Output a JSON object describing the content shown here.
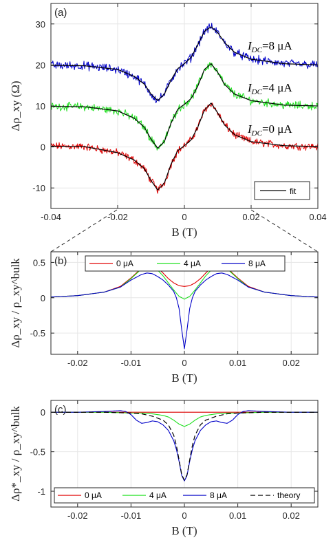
{
  "chart_data": [
    {
      "panel": "(a)",
      "type": "line",
      "xlabel": "B (T)",
      "ylabel": "Δρ_xy (Ω)",
      "xlim": [
        -0.04,
        0.04
      ],
      "ylim": [
        -15,
        35
      ],
      "xticks": [
        -0.04,
        -0.02,
        0,
        0.02,
        0.04
      ],
      "xtick_labels": [
        "-0.04",
        "-0.02",
        "0",
        "0.02",
        "0.04"
      ],
      "yticks": [
        -10,
        0,
        10,
        20,
        30
      ],
      "ytick_labels": [
        "-10",
        "0",
        "10",
        "20",
        "30"
      ],
      "grid": true,
      "legend_position": "bottom-right",
      "legend": [
        "fit"
      ],
      "series": [
        {
          "label": "I_DC=0 μA",
          "color": "#e00000",
          "offset": 0,
          "x": [
            -0.04,
            -0.03,
            -0.02,
            -0.015,
            -0.012,
            -0.01,
            -0.008,
            -0.006,
            -0.004,
            -0.002,
            0,
            0.002,
            0.004,
            0.006,
            0.008,
            0.01,
            0.012,
            0.015,
            0.02,
            0.03,
            0.04
          ],
          "y": [
            0.2,
            0.1,
            -1.4,
            -3.2,
            -5.3,
            -8.2,
            -10.5,
            -8.8,
            -4.2,
            -0.9,
            0.3,
            1.7,
            4.8,
            9.0,
            10.7,
            8.3,
            5.4,
            3.0,
            1.3,
            0.3,
            0.1
          ]
        },
        {
          "label": "I_DC=4 μA",
          "color": "#1ee01e",
          "offset": 10,
          "x": [
            -0.04,
            -0.03,
            -0.02,
            -0.015,
            -0.012,
            -0.01,
            -0.008,
            -0.006,
            -0.004,
            -0.002,
            0,
            0.002,
            0.004,
            0.006,
            0.008,
            0.01,
            0.012,
            0.015,
            0.02,
            0.03,
            0.04
          ],
          "y": [
            9.9,
            9.8,
            8.8,
            7.0,
            4.8,
            1.9,
            -0.3,
            1.3,
            5.8,
            9.2,
            10.4,
            11.8,
            14.8,
            18.9,
            20.3,
            18.2,
            15.3,
            12.9,
            11.3,
            10.2,
            10.0
          ]
        },
        {
          "label": "I_DC=8 μA",
          "color": "#0000c8",
          "offset": 20,
          "x": [
            -0.04,
            -0.03,
            -0.02,
            -0.015,
            -0.012,
            -0.01,
            -0.008,
            -0.006,
            -0.004,
            -0.002,
            0,
            0.002,
            0.004,
            0.006,
            0.008,
            0.01,
            0.012,
            0.015,
            0.02,
            0.03,
            0.04
          ],
          "y": [
            19.9,
            19.8,
            18.9,
            17.2,
            15.3,
            12.9,
            11.3,
            12.9,
            16.3,
            19.1,
            20.3,
            21.8,
            24.9,
            28.2,
            29.3,
            27.9,
            25.5,
            23.1,
            21.4,
            20.3,
            20.0
          ]
        }
      ],
      "annotations": [
        {
          "text": "I",
          "sub": "DC",
          "tail": "=8 μA"
        },
        {
          "text": "I",
          "sub": "DC",
          "tail": "=4 μA"
        },
        {
          "text": "I",
          "sub": "DC",
          "tail": "=0 μA"
        }
      ]
    },
    {
      "panel": "(b)",
      "type": "line",
      "xlabel": "B (T)",
      "ylabel": "Δρ_xy / ρ_xy^bulk",
      "xlim": [
        -0.025,
        0.025
      ],
      "ylim": [
        -0.8,
        0.65
      ],
      "xticks": [
        -0.02,
        -0.01,
        0,
        0.01,
        0.02
      ],
      "xtick_labels": [
        "-0.02",
        "-0.01",
        "0",
        "0.01",
        "0.02"
      ],
      "yticks": [
        -0.5,
        0,
        0.5
      ],
      "ytick_labels": [
        "-0.5",
        "0",
        "0.5"
      ],
      "grid": true,
      "legend_position": "top",
      "legend": [
        "0 μA",
        "4 μA",
        "8 μA"
      ],
      "series": [
        {
          "name": "0 μA",
          "color": "#e00000",
          "x": [
            -0.025,
            -0.02,
            -0.015,
            -0.012,
            -0.01,
            -0.008,
            -0.007,
            -0.006,
            -0.005,
            -0.004,
            -0.003,
            -0.002,
            -0.001,
            0,
            0.001,
            0.002,
            0.003,
            0.004,
            0.005,
            0.006,
            0.007,
            0.008,
            0.01,
            0.012,
            0.015,
            0.02,
            0.025
          ],
          "y": [
            0.01,
            0.03,
            0.08,
            0.16,
            0.28,
            0.42,
            0.47,
            0.46,
            0.42,
            0.35,
            0.27,
            0.21,
            0.17,
            0.16,
            0.17,
            0.21,
            0.27,
            0.35,
            0.42,
            0.46,
            0.47,
            0.42,
            0.28,
            0.16,
            0.08,
            0.03,
            0.01
          ]
        },
        {
          "name": "4 μA",
          "color": "#1ee01e",
          "x": [
            -0.025,
            -0.02,
            -0.015,
            -0.012,
            -0.01,
            -0.008,
            -0.007,
            -0.006,
            -0.005,
            -0.004,
            -0.003,
            -0.002,
            -0.001,
            0,
            0.001,
            0.002,
            0.003,
            0.004,
            0.005,
            0.006,
            0.007,
            0.008,
            0.01,
            0.012,
            0.015,
            0.02,
            0.025
          ],
          "y": [
            0.01,
            0.03,
            0.08,
            0.15,
            0.27,
            0.41,
            0.45,
            0.44,
            0.39,
            0.31,
            0.21,
            0.11,
            0.02,
            -0.02,
            0.02,
            0.11,
            0.21,
            0.31,
            0.39,
            0.44,
            0.45,
            0.41,
            0.27,
            0.15,
            0.08,
            0.03,
            0.01
          ]
        },
        {
          "name": "8 μA",
          "color": "#0000c8",
          "x": [
            -0.025,
            -0.02,
            -0.015,
            -0.012,
            -0.01,
            -0.008,
            -0.007,
            -0.006,
            -0.005,
            -0.004,
            -0.003,
            -0.002,
            -0.0015,
            -0.001,
            -0.0005,
            0,
            0.0005,
            0.001,
            0.0015,
            0.002,
            0.003,
            0.004,
            0.005,
            0.006,
            0.007,
            0.008,
            0.01,
            0.012,
            0.015,
            0.02,
            0.025
          ],
          "y": [
            0.01,
            0.03,
            0.08,
            0.15,
            0.25,
            0.33,
            0.35,
            0.34,
            0.3,
            0.25,
            0.18,
            0.09,
            0.0,
            -0.15,
            -0.45,
            -0.72,
            -0.45,
            -0.15,
            0.0,
            0.09,
            0.18,
            0.25,
            0.3,
            0.34,
            0.35,
            0.33,
            0.25,
            0.15,
            0.08,
            0.03,
            0.01
          ]
        }
      ]
    },
    {
      "panel": "(c)",
      "type": "line",
      "xlabel": "B (T)",
      "ylabel": "Δρ*_xy / ρ_xy^bulk",
      "xlim": [
        -0.025,
        0.025
      ],
      "ylim": [
        -1.2,
        0.15
      ],
      "xticks": [
        -0.02,
        -0.01,
        0,
        0.01,
        0.02
      ],
      "xtick_labels": [
        "-0.02",
        "-0.01",
        "0",
        "0.01",
        "0.02"
      ],
      "yticks": [
        -1,
        -0.5,
        0
      ],
      "ytick_labels": [
        "-1",
        "-0.5",
        "0"
      ],
      "grid": true,
      "legend_position": "bottom",
      "legend": [
        "0 μA",
        "4 μA",
        "8 μA",
        "theory"
      ],
      "series": [
        {
          "name": "0 μA",
          "color": "#e00000",
          "x": [
            -0.025,
            0.025
          ],
          "y": [
            0,
            0
          ]
        },
        {
          "name": "4 μA",
          "color": "#1ee01e",
          "x": [
            -0.025,
            -0.015,
            -0.01,
            -0.008,
            -0.006,
            -0.004,
            -0.003,
            -0.002,
            -0.001,
            0,
            0.001,
            0.002,
            0.003,
            0.004,
            0.006,
            0.008,
            0.01,
            0.015,
            0.025
          ],
          "y": [
            0,
            0,
            -0.01,
            -0.01,
            -0.02,
            -0.04,
            -0.06,
            -0.1,
            -0.15,
            -0.18,
            -0.15,
            -0.1,
            -0.06,
            -0.04,
            -0.02,
            -0.01,
            -0.01,
            0,
            0
          ]
        },
        {
          "name": "8 μA",
          "color": "#0000c8",
          "x": [
            -0.025,
            -0.02,
            -0.015,
            -0.012,
            -0.011,
            -0.01,
            -0.009,
            -0.008,
            -0.007,
            -0.006,
            -0.005,
            -0.004,
            -0.003,
            -0.002,
            -0.0015,
            -0.001,
            -0.0005,
            0,
            0.0005,
            0.001,
            0.0015,
            0.002,
            0.003,
            0.004,
            0.005,
            0.006,
            0.007,
            0.008,
            0.009,
            0.01,
            0.011,
            0.012,
            0.015,
            0.02,
            0.025
          ],
          "y": [
            0,
            0,
            0.01,
            0.02,
            0.01,
            -0.03,
            -0.1,
            -0.14,
            -0.13,
            -0.11,
            -0.12,
            -0.16,
            -0.23,
            -0.36,
            -0.47,
            -0.62,
            -0.8,
            -0.87,
            -0.8,
            -0.62,
            -0.47,
            -0.36,
            -0.23,
            -0.16,
            -0.12,
            -0.11,
            -0.13,
            -0.14,
            -0.1,
            -0.03,
            0.01,
            0.02,
            0.01,
            0,
            0
          ]
        },
        {
          "name": "theory",
          "color": "#000000",
          "dash": true,
          "x": [
            -0.025,
            -0.02,
            -0.015,
            -0.01,
            -0.008,
            -0.006,
            -0.004,
            -0.003,
            -0.002,
            -0.0015,
            -0.001,
            -0.0005,
            0,
            0.0005,
            0.001,
            0.0015,
            0.002,
            0.003,
            0.004,
            0.006,
            0.008,
            0.01,
            0.015,
            0.02,
            0.025
          ],
          "y": [
            0,
            0,
            0,
            -0.01,
            -0.02,
            -0.05,
            -0.1,
            -0.16,
            -0.29,
            -0.42,
            -0.6,
            -0.79,
            -0.86,
            -0.79,
            -0.6,
            -0.42,
            -0.29,
            -0.16,
            -0.1,
            -0.05,
            -0.02,
            -0.01,
            0,
            0,
            0
          ]
        }
      ]
    }
  ]
}
